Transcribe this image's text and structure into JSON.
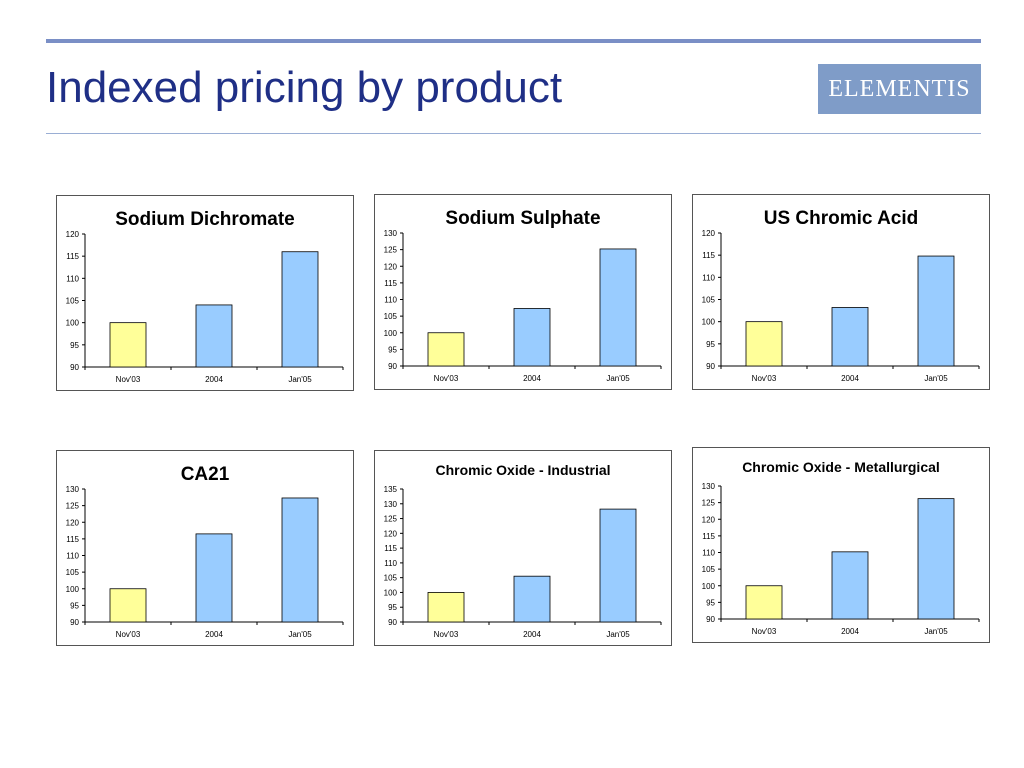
{
  "page": {
    "title": "Indexed pricing by product"
  },
  "logo": {
    "text": "ELEMENTIS",
    "color": "#7f9cc8"
  },
  "colors": {
    "first_bar": "#ffff99",
    "other_bars": "#99ccff",
    "title_text": "#1f2f86"
  },
  "chart_data": [
    {
      "type": "bar",
      "title": "Sodium Dichromate",
      "categories": [
        "Nov'03",
        "2004",
        "Jan'05"
      ],
      "values": [
        100,
        104,
        116
      ],
      "ylim": [
        90,
        120
      ],
      "yticks": [
        90,
        95,
        100,
        105,
        110,
        115,
        120
      ],
      "xlabel": "",
      "ylabel": "",
      "grid": false,
      "legend": "none"
    },
    {
      "type": "bar",
      "title": "Sodium Sulphate",
      "categories": [
        "Nov'03",
        "2004",
        "Jan'05"
      ],
      "values": [
        100,
        107.3,
        125.2
      ],
      "ylim": [
        90,
        130
      ],
      "yticks": [
        90,
        95,
        100,
        105,
        110,
        115,
        120,
        125,
        130
      ],
      "xlabel": "",
      "ylabel": "",
      "grid": false,
      "legend": "none"
    },
    {
      "type": "bar",
      "title": "US Chromic Acid",
      "categories": [
        "Nov'03",
        "2004",
        "Jan'05"
      ],
      "values": [
        100,
        103.2,
        114.8
      ],
      "ylim": [
        90,
        120
      ],
      "yticks": [
        90,
        95,
        100,
        105,
        110,
        115,
        120
      ],
      "xlabel": "",
      "ylabel": "",
      "grid": false,
      "legend": "none"
    },
    {
      "type": "bar",
      "title": "CA21",
      "categories": [
        "Nov'03",
        "2004",
        "Jan'05"
      ],
      "values": [
        100,
        116.5,
        127.3
      ],
      "ylim": [
        90,
        130
      ],
      "yticks": [
        90,
        95,
        100,
        105,
        110,
        115,
        120,
        125,
        130
      ],
      "xlabel": "",
      "ylabel": "",
      "grid": false,
      "legend": "none"
    },
    {
      "type": "bar",
      "title": "Chromic Oxide - Industrial",
      "categories": [
        "Nov'03",
        "2004",
        "Jan'05"
      ],
      "values": [
        100,
        105.5,
        128.2
      ],
      "ylim": [
        90,
        135
      ],
      "yticks": [
        90,
        95,
        100,
        105,
        110,
        115,
        120,
        125,
        130,
        135
      ],
      "xlabel": "",
      "ylabel": "",
      "grid": false,
      "legend": "none"
    },
    {
      "type": "bar",
      "title": "Chromic Oxide - Metallurgical",
      "categories": [
        "Nov'03",
        "2004",
        "Jan'05"
      ],
      "values": [
        100,
        110.2,
        126.2
      ],
      "ylim": [
        90,
        130
      ],
      "yticks": [
        90,
        95,
        100,
        105,
        110,
        115,
        120,
        125,
        130
      ],
      "xlabel": "",
      "ylabel": "",
      "grid": false,
      "legend": "none"
    }
  ]
}
